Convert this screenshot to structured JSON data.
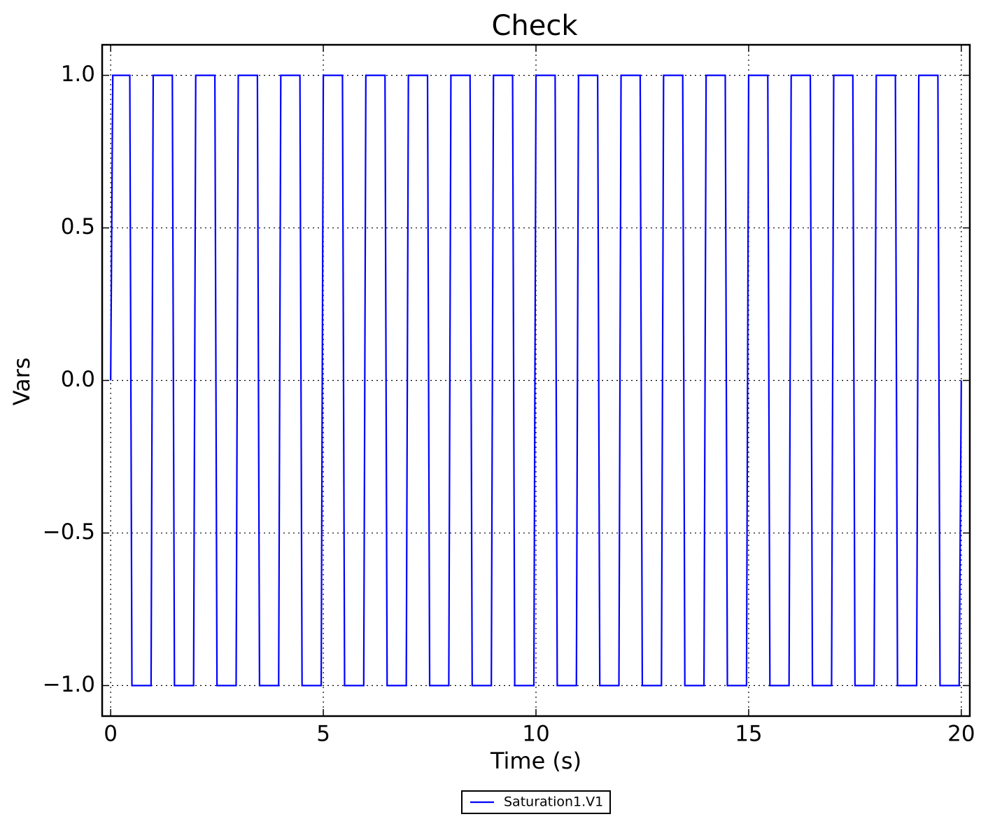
{
  "chart_data": {
    "type": "line",
    "title": "Check",
    "xlabel": "Time (s)",
    "ylabel": "Vars",
    "x": [
      0,
      0.05,
      0.45,
      0.5,
      0.95,
      1,
      1.45,
      1.5,
      1.95,
      2,
      2.45,
      2.5,
      2.95,
      3,
      3.45,
      3.5,
      3.95,
      4,
      4.45,
      4.5,
      4.95,
      5,
      5.45,
      5.5,
      5.95,
      6,
      6.45,
      6.5,
      6.95,
      7,
      7.45,
      7.5,
      7.95,
      8,
      8.45,
      8.5,
      8.95,
      9,
      9.45,
      9.5,
      9.95,
      10,
      10.45,
      10.5,
      10.95,
      11,
      11.45,
      11.5,
      11.95,
      12,
      12.45,
      12.5,
      12.95,
      13,
      13.45,
      13.5,
      13.95,
      14,
      14.45,
      14.5,
      14.95,
      15,
      15.45,
      15.5,
      15.95,
      16,
      16.45,
      16.5,
      16.95,
      17,
      17.45,
      17.5,
      17.95,
      18,
      18.45,
      18.5,
      18.95,
      19,
      19.45,
      19.5,
      19.95,
      20
    ],
    "series": [
      {
        "name": "Saturation1.V1",
        "color": "#0000ff",
        "values": [
          0,
          1,
          1,
          -1,
          -1,
          1,
          1,
          -1,
          -1,
          1,
          1,
          -1,
          -1,
          1,
          1,
          -1,
          -1,
          1,
          1,
          -1,
          -1,
          1,
          1,
          -1,
          -1,
          1,
          1,
          -1,
          -1,
          1,
          1,
          -1,
          -1,
          1,
          1,
          -1,
          -1,
          1,
          1,
          -1,
          -1,
          1,
          1,
          -1,
          -1,
          1,
          1,
          -1,
          -1,
          1,
          1,
          -1,
          -1,
          1,
          1,
          -1,
          -1,
          1,
          1,
          -1,
          -1,
          1,
          1,
          -1,
          -1,
          1,
          1,
          -1,
          -1,
          1,
          1,
          -1,
          -1,
          1,
          1,
          -1,
          -1,
          1,
          1,
          -1,
          -1,
          0
        ]
      }
    ],
    "xlim": [
      -0.2,
      20.2
    ],
    "ylim": [
      -1.1,
      1.1
    ],
    "xticks": [
      0,
      5,
      10,
      15,
      20
    ],
    "yticks": [
      {
        "value": -1,
        "label": "−1.0"
      },
      {
        "value": -0.5,
        "label": "−0.5"
      },
      {
        "value": 0,
        "label": "0.0"
      },
      {
        "value": 0.5,
        "label": "0.5"
      },
      {
        "value": 1,
        "label": "1.0"
      }
    ],
    "grid": true,
    "legend": "lower center"
  }
}
